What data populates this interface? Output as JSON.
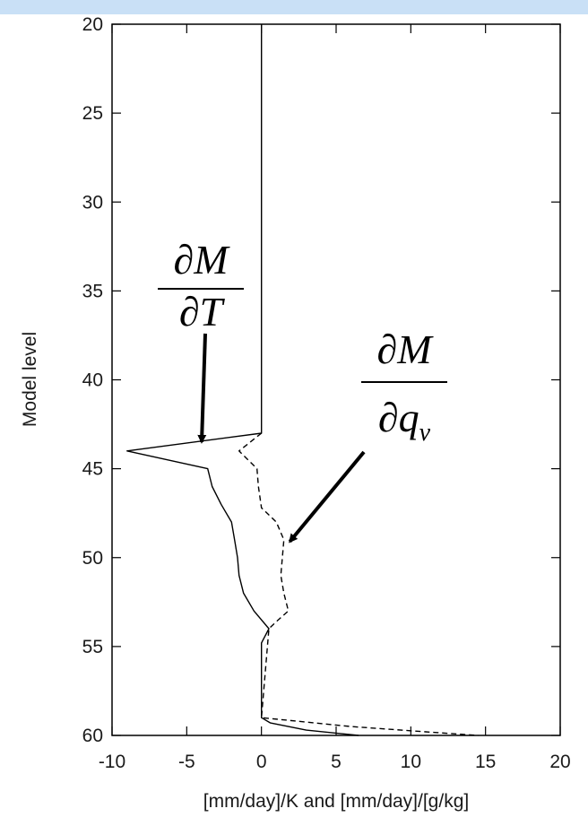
{
  "theme": {
    "top_bar_color": "#c9e0f6",
    "line_color": "#000000"
  },
  "chart_data": {
    "type": "line",
    "xlabel": "[mm/day]/K and [mm/day]/[g/kg]",
    "ylabel": "Model level",
    "xlim": [
      -10,
      20
    ],
    "ylim": [
      20,
      60
    ],
    "y_inverted": true,
    "x_ticks": [
      -10,
      -5,
      0,
      5,
      10,
      15,
      20
    ],
    "y_ticks": [
      20,
      25,
      30,
      35,
      40,
      45,
      50,
      55,
      60
    ],
    "grid": false,
    "series": [
      {
        "style": "solid",
        "points": [
          [
            0,
            20
          ],
          [
            0,
            43
          ],
          [
            -9,
            44
          ],
          [
            -3.6,
            45
          ],
          [
            -3.3,
            46
          ],
          [
            -2.7,
            47
          ],
          [
            -2,
            48
          ],
          [
            -1.8,
            49
          ],
          [
            -1.6,
            50
          ],
          [
            -1.5,
            51
          ],
          [
            -1.2,
            52
          ],
          [
            -0.5,
            53
          ],
          [
            0.5,
            54
          ],
          [
            0,
            54.8
          ],
          [
            0,
            59
          ],
          [
            0.6,
            59.3
          ],
          [
            3,
            59.7
          ],
          [
            6.5,
            60
          ]
        ]
      },
      {
        "style": "dashed",
        "points": [
          [
            0,
            43
          ],
          [
            -1.5,
            44
          ],
          [
            -0.3,
            45
          ],
          [
            -0.2,
            46
          ],
          [
            0,
            47.2
          ],
          [
            1,
            48
          ],
          [
            1.5,
            49
          ],
          [
            1.4,
            50
          ],
          [
            1.3,
            51
          ],
          [
            1.5,
            52
          ],
          [
            1.8,
            53
          ],
          [
            1,
            53.6
          ],
          [
            0.5,
            54
          ],
          [
            0,
            59
          ],
          [
            6,
            59.5
          ],
          [
            11,
            59.8
          ],
          [
            14.5,
            60
          ]
        ]
      }
    ],
    "annotations": [
      {
        "numerator": "∂M",
        "denominator_symbol": "∂",
        "denominator_var": "T",
        "subscript": "",
        "arrow_target": [
          -4,
          43.5
        ]
      },
      {
        "numerator": "∂M",
        "denominator_symbol": "∂",
        "denominator_var": "q",
        "subscript": "v",
        "arrow_target": [
          1.9,
          49.1
        ]
      }
    ]
  }
}
